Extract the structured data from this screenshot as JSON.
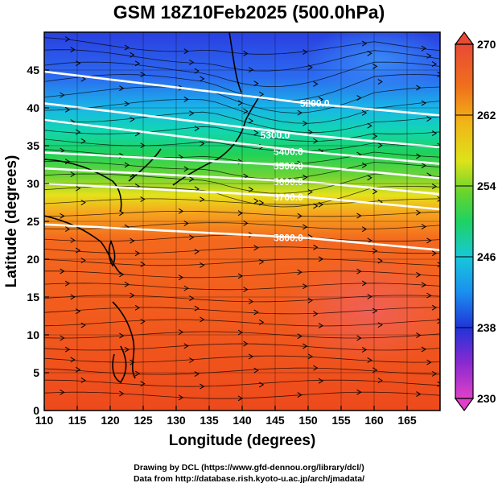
{
  "title": "GSM 18Z10Feb2025 (500.0hPa)",
  "credits": {
    "line1": "Drawing by DCL (https://www.gfd-dennou.org/library/dcl/)",
    "line2": "Data from http://database.rish.kyoto-u.ac.jp/arch/jmadata/"
  },
  "map": {
    "xlabel": "Longitude (degrees)",
    "ylabel": "Latitude  (degrees)",
    "lon_range": [
      110,
      170
    ],
    "lat_range": [
      0,
      50
    ],
    "lon_ticks": [
      "110",
      "115",
      "120",
      "125",
      "130",
      "135",
      "140",
      "145",
      "150",
      "155",
      "160",
      "165"
    ],
    "lat_ticks": [
      "0",
      "5",
      "10",
      "15",
      "20",
      "25",
      "30",
      "35",
      "40",
      "45"
    ],
    "height_contours": [
      {
        "label": "5200.0",
        "lon": 151,
        "lat": 40.6
      },
      {
        "label": "5300.0",
        "lon": 145,
        "lat": 36.4
      },
      {
        "label": "5400.0",
        "lon": 147,
        "lat": 34.2
      },
      {
        "label": "5500.0",
        "lon": 147,
        "lat": 32.3
      },
      {
        "label": "5600.0",
        "lon": 147,
        "lat": 30.2
      },
      {
        "label": "5700.0",
        "lon": 147,
        "lat": 28.2
      },
      {
        "label": "5800.0",
        "lon": 147,
        "lat": 22.8
      }
    ]
  },
  "colorbar": {
    "ticks": [
      "270",
      "262",
      "254",
      "246",
      "238",
      "230"
    ],
    "range": [
      230,
      270
    ]
  }
}
